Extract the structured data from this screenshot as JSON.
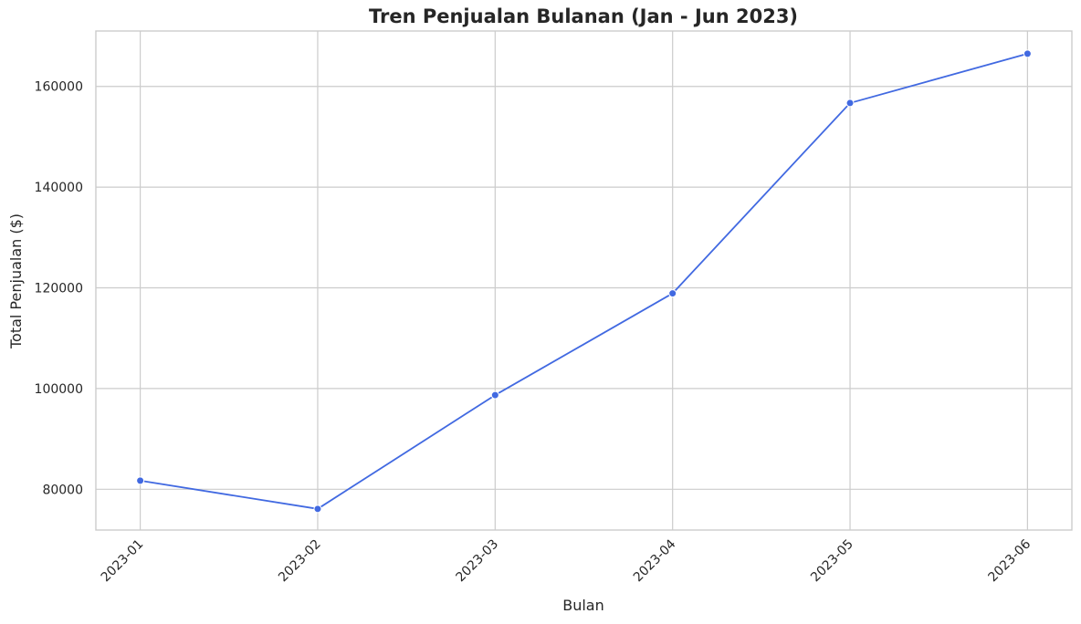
{
  "chart_data": {
    "type": "line",
    "title": "Tren Penjualan Bulanan (Jan - Jun 2023)",
    "xlabel": "Bulan",
    "ylabel": "Total Penjualan ($)",
    "categories": [
      "2023-01",
      "2023-02",
      "2023-03",
      "2023-04",
      "2023-05",
      "2023-06"
    ],
    "series": [
      {
        "values": [
          81700,
          76100,
          98700,
          118900,
          156700,
          166500
        ],
        "color": "#4169E1"
      }
    ],
    "y_ticks": [
      80000,
      100000,
      120000,
      140000,
      160000
    ],
    "ylim": [
      71900,
      171000
    ],
    "grid": true,
    "marker": "circle",
    "x_tick_rotation": "45deg"
  }
}
